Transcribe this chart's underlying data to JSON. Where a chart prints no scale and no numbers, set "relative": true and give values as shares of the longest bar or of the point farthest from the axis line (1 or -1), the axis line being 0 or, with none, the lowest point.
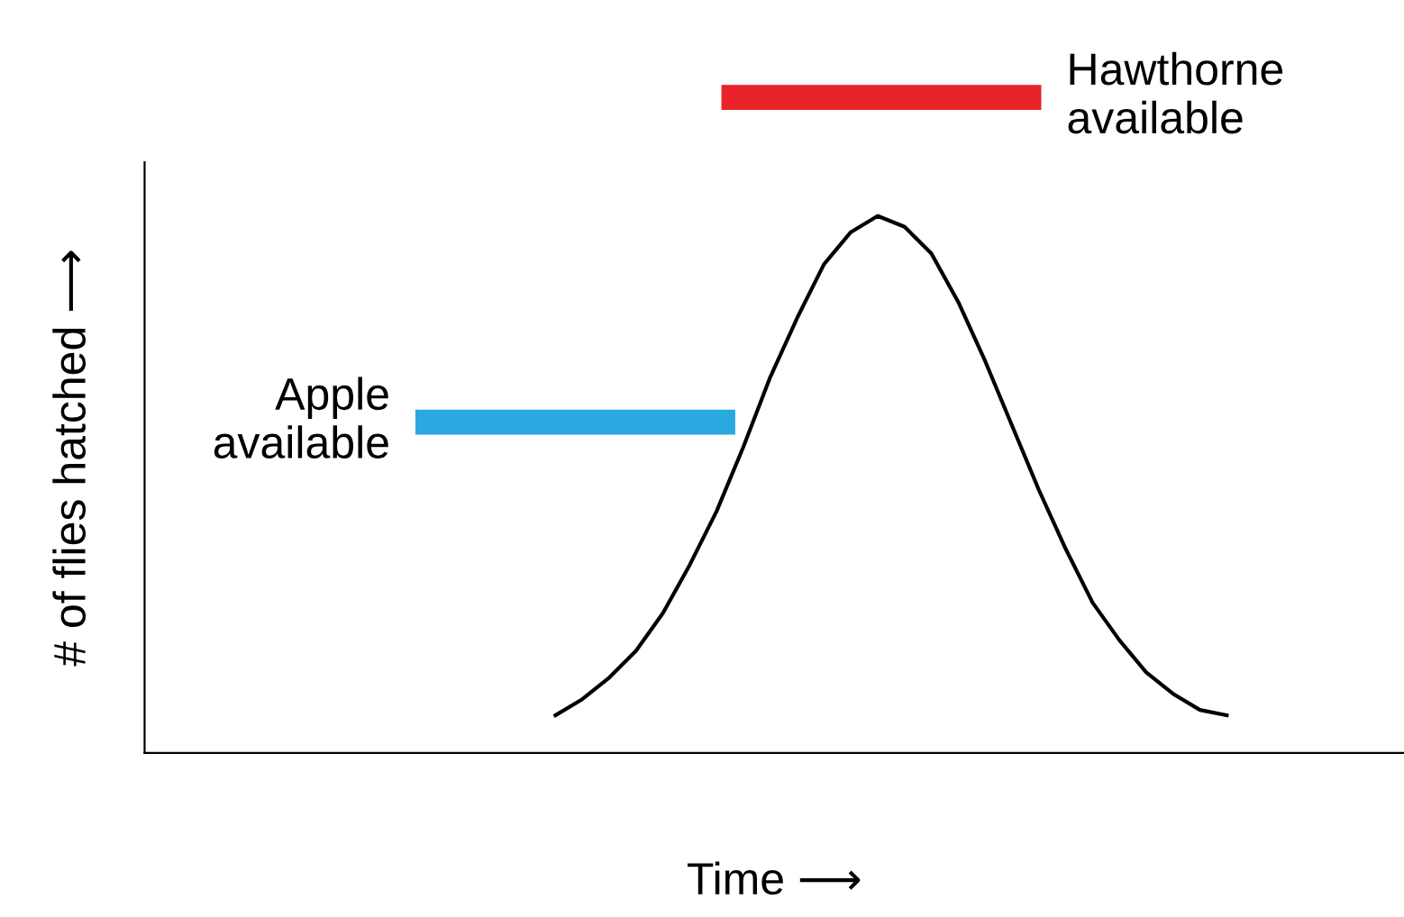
{
  "chart_data": {
    "type": "line",
    "relative": true,
    "xlabel": "Time ⟶",
    "ylabel": "# of flies hatched ⟶",
    "categories": [
      null,
      null,
      null,
      null,
      null,
      null,
      null,
      null,
      null,
      null,
      null,
      null,
      null,
      null,
      null,
      null,
      null,
      null,
      null,
      null,
      null,
      null,
      null,
      null,
      null,
      null,
      null,
      null,
      null,
      null,
      null,
      null,
      null,
      null,
      null,
      null,
      null,
      null,
      null,
      null,
      null,
      null,
      null,
      null,
      null,
      null,
      null
    ],
    "series": [
      {
        "color": "#000000",
        "values": [
          null,
          null,
          null,
          null,
          null,
          null,
          null,
          null,
          null,
          null,
          null,
          null,
          null,
          null,
          null,
          0.07,
          0.1,
          0.14,
          0.19,
          0.26,
          0.35,
          0.45,
          0.57,
          0.7,
          0.81,
          0.91,
          0.97,
          1.0,
          0.98,
          0.93,
          0.84,
          0.73,
          0.61,
          0.49,
          0.38,
          0.28,
          0.21,
          0.15,
          0.11,
          0.08,
          0.07,
          null,
          null,
          null,
          null,
          null,
          null
        ]
      }
    ],
    "annotations": [
      "Apple\navailable",
      "Hawthorne\navailable"
    ],
    "grid": false,
    "legend": false,
    "marker": "none",
    "line_style": "solid"
  }
}
